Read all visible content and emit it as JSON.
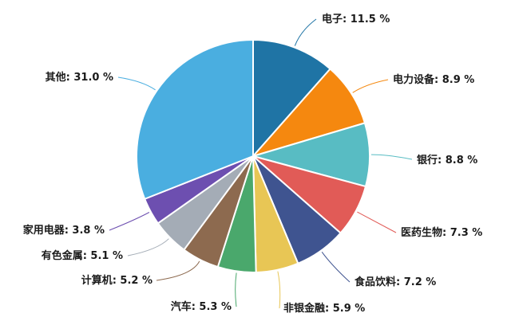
{
  "chart_data": {
    "type": "pie",
    "start_angle_deg": 0,
    "direction": "clockwise",
    "slices": [
      {
        "label": "电子",
        "value": 11.5,
        "display": "电子: 11.5 %",
        "color": "#1f74a5"
      },
      {
        "label": "电力设备",
        "value": 8.9,
        "display": "电力设备: 8.9 %",
        "color": "#f5880f"
      },
      {
        "label": "银行",
        "value": 8.8,
        "display": "银行: 8.8 %",
        "color": "#58bcc3"
      },
      {
        "label": "医药生物",
        "value": 7.3,
        "display": "医药生物: 7.3 %",
        "color": "#e15b57"
      },
      {
        "label": "食品饮料",
        "value": 7.2,
        "display": "食品饮料: 7.2 %",
        "color": "#3f5490"
      },
      {
        "label": "非银金融",
        "value": 5.9,
        "display": "非银金融: 5.9 %",
        "color": "#e8c655"
      },
      {
        "label": "汽车",
        "value": 5.3,
        "display": "汽车: 5.3 %",
        "color": "#4aa86c"
      },
      {
        "label": "计算机",
        "value": 5.2,
        "display": "计算机: 5.2 %",
        "color": "#8d6a4f"
      },
      {
        "label": "有色金属",
        "value": 5.1,
        "display": "有色金属: 5.1 %",
        "color": "#a4acb6"
      },
      {
        "label": "家用电器",
        "value": 3.8,
        "display": "家用电器: 3.8 %",
        "color": "#6d4fb0"
      },
      {
        "label": "其他",
        "value": 31.0,
        "display": "其他: 31.0 %",
        "color": "#4aaee0"
      }
    ]
  }
}
